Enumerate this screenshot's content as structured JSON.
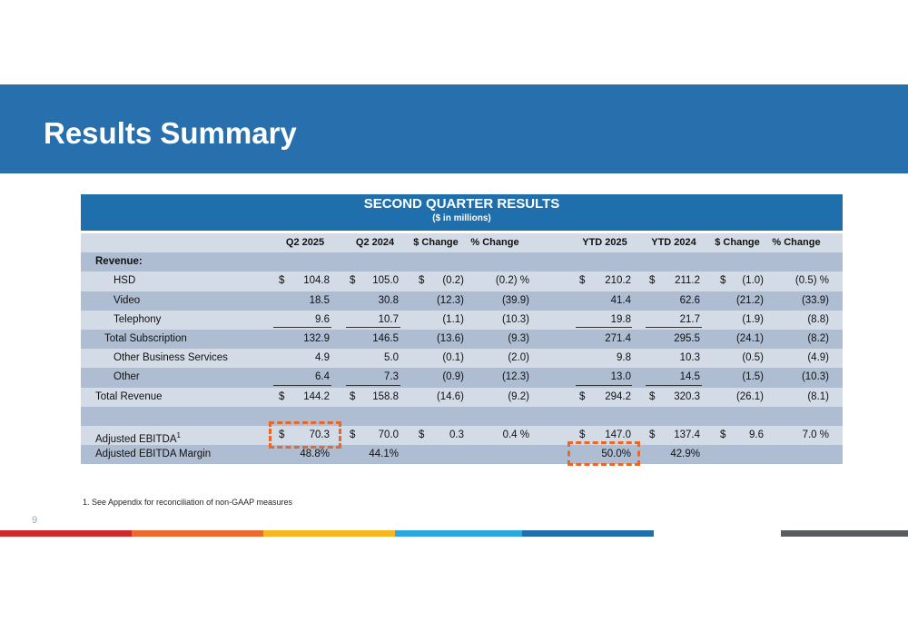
{
  "page": {
    "title": "Results Summary",
    "page_number": "9",
    "footnote": "1. See Appendix for reconciliation of non-GAAP measures"
  },
  "table": {
    "title": "SECOND QUARTER RESULTS",
    "subtitle": "($ in millions)",
    "headers": [
      "Q2 2025",
      "Q2 2024",
      "$ Change",
      "% Change",
      "YTD 2025",
      "YTD 2024",
      "$ Change",
      "% Change"
    ],
    "section_label": "Revenue:",
    "rows": [
      {
        "label": "HSD",
        "cells": [
          "$",
          "104.8",
          "$",
          "105.0",
          "$",
          "(0.2)",
          "(0.2) %",
          "$",
          "210.2",
          "$",
          "211.2",
          "$",
          "(1.0)",
          "(0.5) %"
        ]
      },
      {
        "label": "Video",
        "cells": [
          "",
          "18.5",
          "",
          "30.8",
          "",
          "(12.3)",
          "(39.9)",
          "",
          "41.4",
          "",
          "62.6",
          "",
          "(21.2)",
          "(33.9)"
        ]
      },
      {
        "label": "Telephony",
        "cells": [
          "",
          "9.6",
          "",
          "10.7",
          "",
          "(1.1)",
          "(10.3)",
          "",
          "19.8",
          "",
          "21.7",
          "",
          "(1.9)",
          "(8.8)"
        ]
      },
      {
        "label": "Total Subscription",
        "cells": [
          "",
          "132.9",
          "",
          "146.5",
          "",
          "(13.6)",
          "(9.3)",
          "",
          "271.4",
          "",
          "295.5",
          "",
          "(24.1)",
          "(8.2)"
        ]
      },
      {
        "label": "Other Business Services",
        "cells": [
          "",
          "4.9",
          "",
          "5.0",
          "",
          "(0.1)",
          "(2.0)",
          "",
          "9.8",
          "",
          "10.3",
          "",
          "(0.5)",
          "(4.9)"
        ]
      },
      {
        "label": "Other",
        "cells": [
          "",
          "6.4",
          "",
          "7.3",
          "",
          "(0.9)",
          "(12.3)",
          "",
          "13.0",
          "",
          "14.5",
          "",
          "(1.5)",
          "(10.3)"
        ]
      },
      {
        "label": "Total Revenue",
        "cells": [
          "$",
          "144.2",
          "$",
          "158.8",
          "",
          "(14.6)",
          "(9.2)",
          "$",
          "294.2",
          "$",
          "320.3",
          "",
          "(26.1)",
          "(8.1)"
        ]
      },
      {
        "label": "",
        "cells": [
          "",
          "",
          "",
          "",
          "",
          "",
          "",
          "",
          "",
          "",
          "",
          "",
          "",
          ""
        ]
      },
      {
        "label": "Adjusted EBITDA",
        "sup": "1",
        "cells": [
          "$",
          "70.3",
          "$",
          "70.0",
          "$",
          "0.3",
          "0.4 %",
          "$",
          "147.0",
          "$",
          "137.4",
          "$",
          "9.6",
          "7.0 %"
        ]
      },
      {
        "label": "Adjusted EBITDA Margin",
        "cells": [
          "",
          "48.8%",
          "",
          "44.1%",
          "",
          "",
          "",
          "",
          "50.0%",
          "",
          "42.9%",
          "",
          "",
          ""
        ]
      }
    ]
  },
  "colors": {
    "header_blue": "#2870ad",
    "row_dark": "#aebdd2",
    "row_light": "#d3dbe7",
    "highlight": "#e8682a"
  }
}
